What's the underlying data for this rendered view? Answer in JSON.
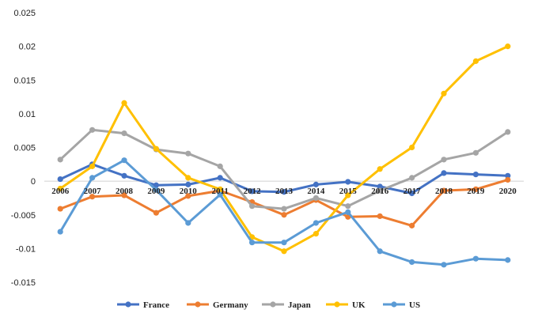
{
  "chart_data": {
    "type": "line",
    "title": "",
    "xlabel": "",
    "ylabel": "",
    "x": [
      "2006",
      "2007",
      "2008",
      "2009",
      "2010",
      "2011",
      "2012",
      "2013",
      "2014",
      "2015",
      "2016",
      "2017",
      "2018",
      "2019",
      "2020"
    ],
    "ylim": [
      -0.015,
      0.025
    ],
    "yticks": [
      -0.015,
      -0.01,
      -0.005,
      0,
      0.005,
      0.01,
      0.015,
      0.02,
      0.025
    ],
    "ytick_labels": [
      "-0.015",
      "-0.01",
      "-0.005",
      "0",
      "0.005",
      "0.01",
      "0.015",
      "0.02",
      "0.025"
    ],
    "grid": false,
    "legend_position": "bottom",
    "series": [
      {
        "name": "France",
        "color": "#4472C4",
        "values": [
          0.0003,
          0.0025,
          0.0008,
          -0.0006,
          -0.0005,
          0.0005,
          -0.0015,
          -0.0016,
          -0.0005,
          -0.0001,
          -0.0008,
          -0.0018,
          0.0012,
          0.001,
          0.0008
        ]
      },
      {
        "name": "Germany",
        "color": "#ED7D31",
        "values": [
          -0.0041,
          -0.0023,
          -0.0021,
          -0.0047,
          -0.0022,
          -0.0014,
          -0.0031,
          -0.005,
          -0.0028,
          -0.0053,
          -0.0052,
          -0.0066,
          -0.0014,
          -0.0012,
          0.0002
        ]
      },
      {
        "name": "Japan",
        "color": "#A5A5A5",
        "values": [
          0.0032,
          0.0076,
          0.0071,
          0.0047,
          0.0041,
          0.0022,
          -0.0037,
          -0.0041,
          -0.0025,
          -0.0037,
          -0.0014,
          0.0005,
          0.0032,
          0.0042,
          0.0073
        ]
      },
      {
        "name": "UK",
        "color": "#FFC000",
        "values": [
          -0.0011,
          0.0022,
          0.0116,
          0.0048,
          0.0005,
          -0.0012,
          -0.0083,
          -0.0104,
          -0.0078,
          -0.0021,
          0.0018,
          0.005,
          0.013,
          0.0178,
          0.02
        ]
      },
      {
        "name": "US",
        "color": "#5B9BD5",
        "values": [
          -0.0075,
          0.0005,
          0.0031,
          -0.0013,
          -0.0062,
          -0.002,
          -0.0091,
          -0.0091,
          -0.0062,
          -0.0046,
          -0.0104,
          -0.012,
          -0.0124,
          -0.0115,
          -0.0117
        ]
      }
    ]
  }
}
